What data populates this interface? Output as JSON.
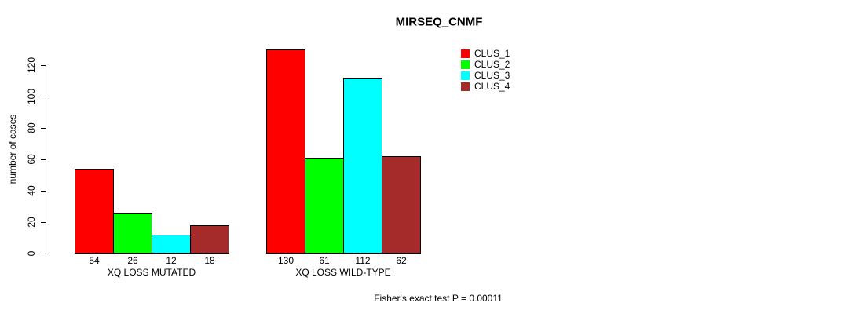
{
  "chart_data": {
    "type": "bar",
    "title": "MIRSEQ_CNMF",
    "ylabel": "number of cases",
    "xlabel": "",
    "ylim": [
      0,
      130
    ],
    "yticks": [
      0,
      20,
      40,
      60,
      80,
      100,
      120
    ],
    "categories": [
      "XQ LOSS MUTATED",
      "XQ LOSS WILD-TYPE"
    ],
    "series": [
      {
        "name": "CLUS_1",
        "color": "#ff0000",
        "values": [
          54,
          130
        ]
      },
      {
        "name": "CLUS_2",
        "color": "#00ff00",
        "values": [
          26,
          61
        ]
      },
      {
        "name": "CLUS_3",
        "color": "#00ffff",
        "values": [
          12,
          112
        ]
      },
      {
        "name": "CLUS_4",
        "color": "#a52a2a",
        "values": [
          18,
          62
        ]
      }
    ],
    "bar_value_labels": [
      [
        54,
        26,
        12,
        18
      ],
      [
        130,
        61,
        112,
        62
      ]
    ],
    "legend": [
      "CLUS_1",
      "CLUS_2",
      "CLUS_3",
      "CLUS_4"
    ],
    "legend_position": "top-right",
    "grid": false,
    "bar_border_color": "#000000",
    "annotation": "Fisher's exact test P = 0.00011"
  }
}
